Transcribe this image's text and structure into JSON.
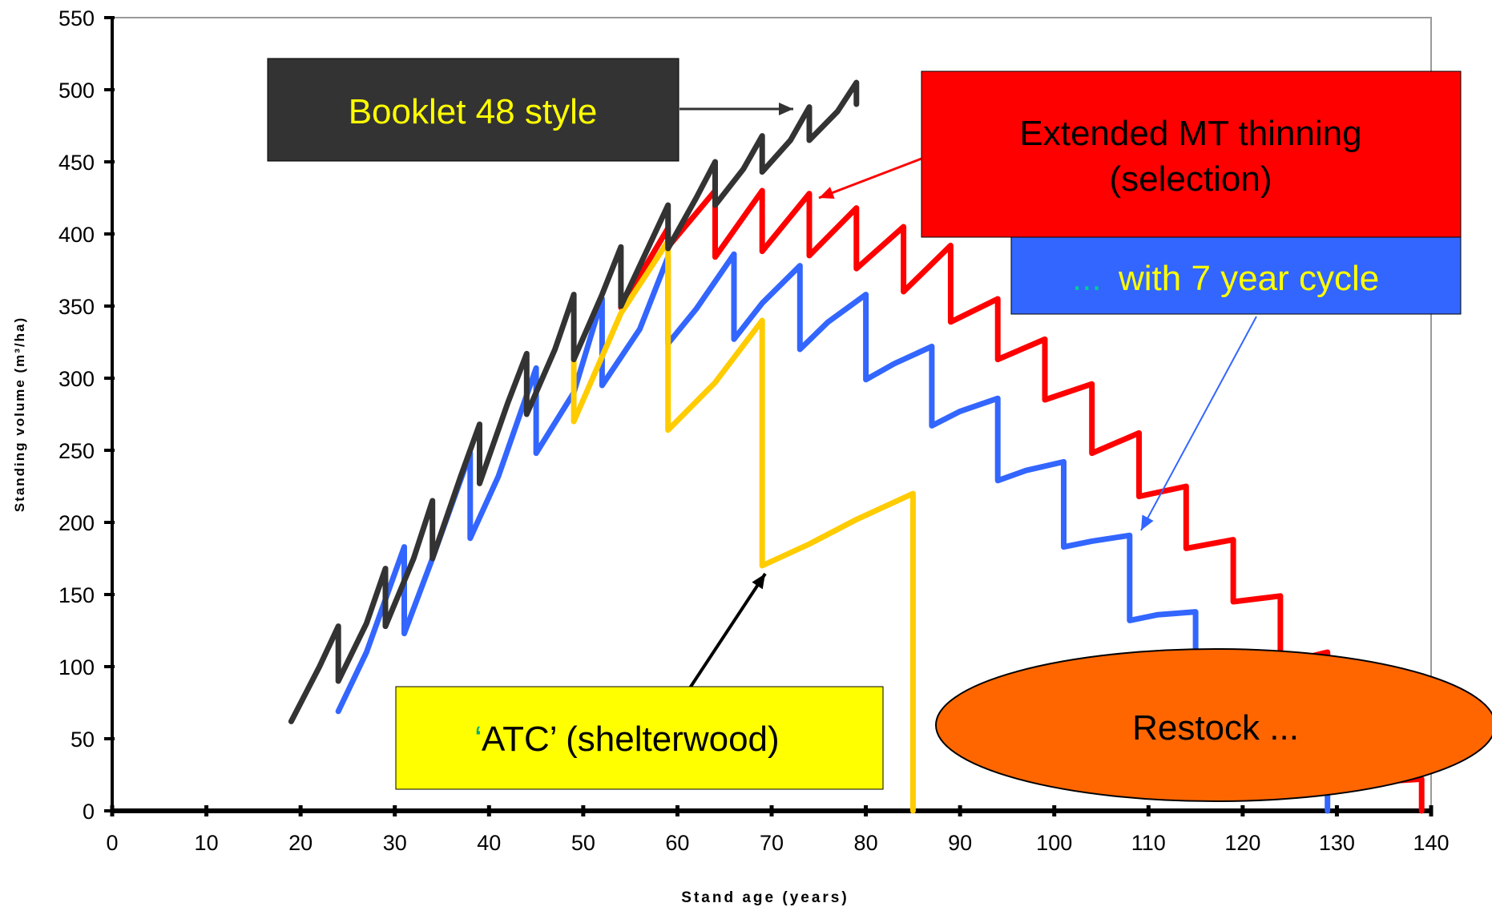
{
  "chart_data": {
    "type": "line",
    "title": "",
    "xlabel": "Stand age (years)",
    "ylabel": "Standing volume (m³/ha)",
    "xlim": [
      0,
      140
    ],
    "ylim": [
      0,
      550
    ],
    "x_ticks": [
      0,
      10,
      20,
      30,
      40,
      50,
      60,
      70,
      80,
      90,
      100,
      110,
      120,
      130,
      140
    ],
    "y_ticks": [
      0,
      50,
      100,
      150,
      200,
      250,
      300,
      350,
      400,
      450,
      500,
      550
    ],
    "grid": false,
    "colors": {
      "booklet": "#333333",
      "extended": "#ff0000",
      "cycle7": "#3366ff",
      "atc": "#ffcc00",
      "restock": "#ff6600",
      "label_yellow": "#ffff00"
    },
    "series": [
      {
        "key": "extended",
        "color": "#ff0000",
        "x": [
          54,
          59,
          59,
          64,
          64,
          69,
          69,
          74,
          74,
          79,
          79,
          84,
          84,
          89,
          89,
          94,
          94,
          99,
          99,
          104,
          104,
          109,
          109,
          114,
          114,
          119,
          119,
          124,
          124,
          129,
          129,
          134,
          134,
          139,
          139
        ],
        "y": [
          349,
          404,
          391,
          430,
          384,
          430,
          388,
          428,
          385,
          418,
          376,
          405,
          360,
          392,
          339,
          355,
          313,
          327,
          285,
          296,
          248,
          262,
          218,
          225,
          182,
          188,
          145,
          149,
          102,
          110,
          62,
          66,
          20,
          22,
          0
        ]
      },
      {
        "key": "cycle7",
        "color": "#3366ff",
        "x": [
          24,
          27,
          31,
          31,
          34,
          38,
          38,
          41,
          45,
          45,
          49,
          52,
          52,
          56,
          59,
          59,
          62,
          66,
          66,
          69,
          73,
          73,
          76,
          80,
          80,
          83,
          87,
          87,
          90,
          94,
          94,
          97,
          101,
          101,
          104,
          108,
          108,
          111,
          115,
          115,
          118,
          122,
          122,
          125,
          129,
          129
        ],
        "y": [
          69,
          110,
          183,
          123,
          175,
          248,
          189,
          232,
          307,
          248,
          290,
          355,
          295,
          334,
          384,
          324,
          348,
          386,
          327,
          352,
          378,
          320,
          339,
          358,
          299,
          310,
          322,
          267,
          277,
          286,
          229,
          236,
          242,
          183,
          187,
          191,
          132,
          136,
          138,
          80,
          82,
          86,
          40,
          42,
          44,
          0
        ]
      },
      {
        "key": "atc",
        "color": "#ffcc00",
        "x": [
          49,
          49,
          54,
          59,
          59,
          64,
          69,
          69,
          74,
          79,
          85,
          85
        ],
        "y": [
          315,
          270,
          345,
          395,
          264,
          297,
          340,
          170,
          185,
          202,
          220,
          0
        ]
      },
      {
        "key": "booklet",
        "color": "#333333",
        "x": [
          19,
          22,
          24,
          24,
          27,
          29,
          29,
          32,
          34,
          34,
          37,
          39,
          39,
          42,
          44,
          44,
          47,
          49,
          49,
          52,
          54,
          54,
          57,
          59,
          59,
          62,
          64,
          64,
          67,
          69,
          69,
          72,
          74,
          74,
          77,
          79,
          79
        ],
        "y": [
          62,
          100,
          128,
          90,
          130,
          168,
          128,
          175,
          215,
          175,
          232,
          268,
          227,
          283,
          317,
          275,
          320,
          358,
          313,
          358,
          391,
          350,
          392,
          420,
          390,
          425,
          450,
          420,
          445,
          468,
          443,
          465,
          488,
          465,
          485,
          505,
          490
        ]
      }
    ],
    "annotations": {
      "booklet": "Booklet 48 style",
      "extended_line1": "Extended MT thinning",
      "extended_line2": "(selection)",
      "cycle7_dots": "...",
      "cycle7": "with 7 year cycle",
      "atc_quote": "‘",
      "atc": "ATC’ (shelterwood)",
      "restock": "Restock ..."
    }
  }
}
